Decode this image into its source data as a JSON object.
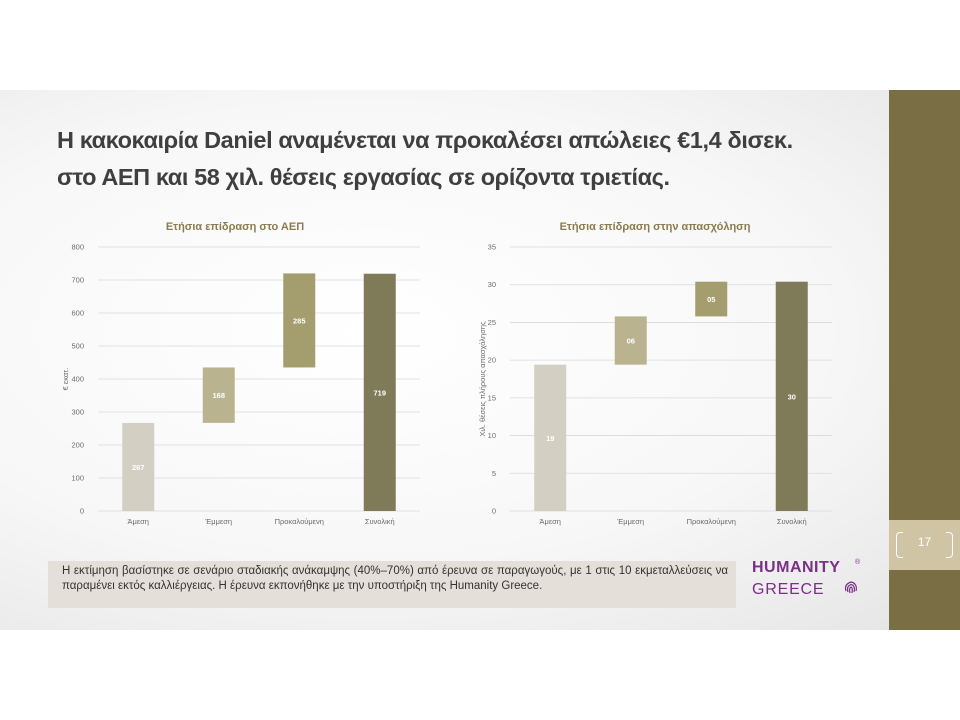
{
  "slide": {
    "title_line1": "Η κακοκαιρία Daniel αναμένεται να προκαλέσει απώλειες €1,4 δισεκ.",
    "title_line2": "στο ΑΕΠ και 58 χιλ. θέσεις εργασίας σε ορίζοντα τριετίας.",
    "page_number": "17",
    "note": "Η εκτίμηση βασίστηκε σε σενάριο σταδιακής ανάκαμψης (40%–70%) από έρευνα σε παραγωγούς, με 1 στις 10 εκμεταλλεύσεις να παραμένει εκτός καλλιέργειας. Η έρευνα εκπονήθηκε με την υποστήριξη της Humanity Greece.",
    "logo_line1": "HUMANITY",
    "logo_registered": "®",
    "logo_line2": "GREECE",
    "logo_icon": "fingerprint-icon",
    "colors": {
      "side_bar": "#7a6e44",
      "page_box": "#cfc4a3",
      "title_text": "#3f3f3f",
      "chart_title": "#8a7c4e",
      "logo": "#7b2f86",
      "note_bg": "#e4dfd8"
    }
  },
  "chart_data": [
    {
      "type": "bar",
      "subtype": "waterfall",
      "title": "Ετήσια επίδραση στο ΑΕΠ",
      "ylabel": "€ εκατ.",
      "xlabel": "",
      "ylim": [
        0,
        800
      ],
      "yticks": [
        0,
        100,
        200,
        300,
        400,
        500,
        600,
        700,
        800
      ],
      "grid": true,
      "categories": [
        "Άμεση",
        "Έμμεση",
        "Προκαλούμενη",
        "Συνολική"
      ],
      "values": [
        267,
        168,
        285,
        719
      ],
      "bases": [
        0,
        267,
        435,
        0
      ],
      "labels": [
        "267",
        "168",
        "285",
        "719"
      ],
      "colors": [
        "#d3d0c3",
        "#b9b390",
        "#a49d6e",
        "#7f7a58"
      ]
    },
    {
      "type": "bar",
      "subtype": "waterfall",
      "title": "Ετήσια επίδραση στην απασχόληση",
      "ylabel": "Χιλ. θέσεις πλήρους απασχόλησης",
      "xlabel": "",
      "ylim": [
        0,
        35
      ],
      "yticks": [
        0,
        5,
        10,
        15,
        20,
        25,
        30,
        35
      ],
      "grid": true,
      "categories": [
        "Άμεση",
        "Έμμεση",
        "Προκαλούμενη",
        "Συνολική"
      ],
      "values": [
        19.4,
        6.4,
        4.6,
        30.4
      ],
      "bases": [
        0,
        19.4,
        25.8,
        0
      ],
      "labels": [
        "19",
        "06",
        "05",
        "30"
      ],
      "colors": [
        "#d3d0c3",
        "#b9b390",
        "#a49d6e",
        "#7f7a58"
      ]
    }
  ]
}
